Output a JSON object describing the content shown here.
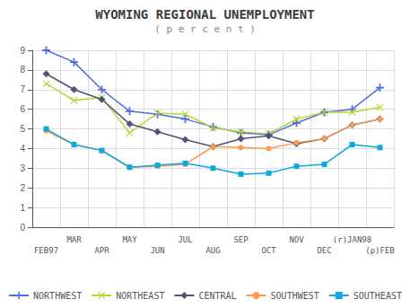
{
  "chart_data": {
    "type": "line",
    "title": "WYOMING REGIONAL UNEMPLOYMENT",
    "subtitle": "( p e r c e n t )",
    "categories": [
      "FEB97",
      "MAR",
      "APR",
      "MAY",
      "JUN",
      "JUL",
      "AUG",
      "SEP",
      "OCT",
      "NOV",
      "DEC",
      "(r)JAN98",
      "(p)FEB"
    ],
    "series": [
      {
        "name": "NORTHWEST",
        "marker": "plus",
        "values": [
          9.0,
          8.4,
          7.0,
          5.9,
          5.75,
          5.5,
          5.1,
          4.8,
          4.7,
          5.3,
          5.85,
          6.0,
          7.1
        ]
      },
      {
        "name": "NORTHEAST",
        "marker": "x",
        "values": [
          7.3,
          6.45,
          6.6,
          4.8,
          5.8,
          5.75,
          5.05,
          4.85,
          4.75,
          5.5,
          5.85,
          5.85,
          6.1
        ]
      },
      {
        "name": "CENTRAL",
        "marker": "diamond",
        "values": [
          7.8,
          7.0,
          6.5,
          5.25,
          4.85,
          4.45,
          4.1,
          4.5,
          4.65,
          4.25,
          4.5,
          5.2,
          5.5
        ]
      },
      {
        "name": "SOUTHWEST",
        "marker": "circle",
        "values": [
          4.9,
          4.2,
          3.9,
          3.05,
          3.1,
          3.2,
          4.1,
          4.05,
          4.0,
          4.3,
          4.5,
          5.2,
          5.5
        ]
      },
      {
        "name": "SOUTHEAST",
        "marker": "square",
        "values": [
          5.0,
          4.2,
          3.9,
          3.05,
          3.15,
          3.25,
          3.0,
          2.7,
          2.75,
          3.1,
          3.2,
          4.2,
          4.05
        ]
      }
    ],
    "ylim": [
      0,
      9
    ],
    "yticks": [
      0,
      1,
      2,
      3,
      4,
      5,
      6,
      7,
      8,
      9
    ],
    "grid": true,
    "legend": "bottom"
  }
}
